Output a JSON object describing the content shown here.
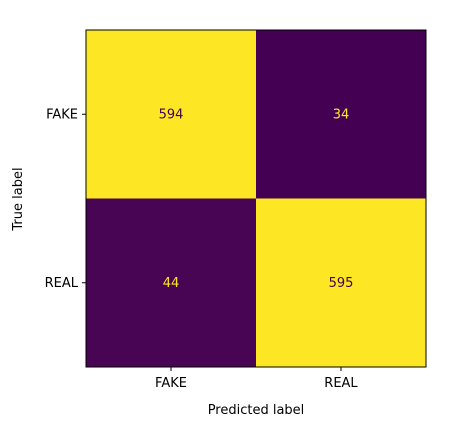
{
  "chart_data": {
    "type": "heatmap",
    "title": "",
    "xlabel": "Predicted label",
    "ylabel": "True label",
    "x_categories": [
      "FAKE",
      "REAL"
    ],
    "y_categories": [
      "FAKE",
      "REAL"
    ],
    "values": [
      [
        594,
        34
      ],
      [
        44,
        595
      ]
    ],
    "colormap": "viridis",
    "colors": {
      "high": "#fde725",
      "low": "#440154",
      "text_on_high": "#440154",
      "text_on_low": "#fde725",
      "frame": "#000000"
    },
    "grid": false,
    "legend": "none"
  }
}
